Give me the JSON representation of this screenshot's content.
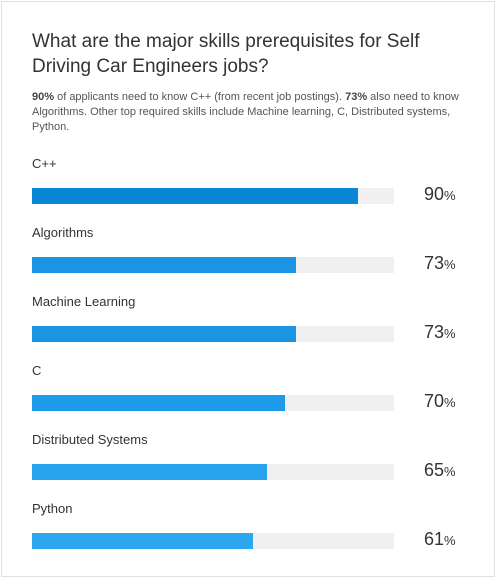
{
  "title": "What are the major skills prerequisites for Self Driving Car Engineers jobs?",
  "summary": {
    "part1_bold": "90%",
    "part2": " of applicants need to know C++ (from recent job postings). ",
    "part3_bold": "73%",
    "part4": " also need to know Algorithms. Other top required skills include Machine learning, C, Distributed systems, Python."
  },
  "percent_sign": "%",
  "colors": {
    "bar_colors": [
      "#0a86d6",
      "#1a95e4",
      "#1a95e4",
      "#1e9be8",
      "#27a2ec",
      "#2ca7ef"
    ],
    "track": "#f0f0f0"
  },
  "chart_data": {
    "type": "bar",
    "orientation": "horizontal",
    "categories": [
      "C++",
      "Algorithms",
      "Machine Learning",
      "C",
      "Distributed Systems",
      "Python"
    ],
    "values": [
      90,
      73,
      73,
      70,
      65,
      61
    ],
    "xlim": [
      0,
      100
    ],
    "grid": false,
    "legend": "none"
  }
}
